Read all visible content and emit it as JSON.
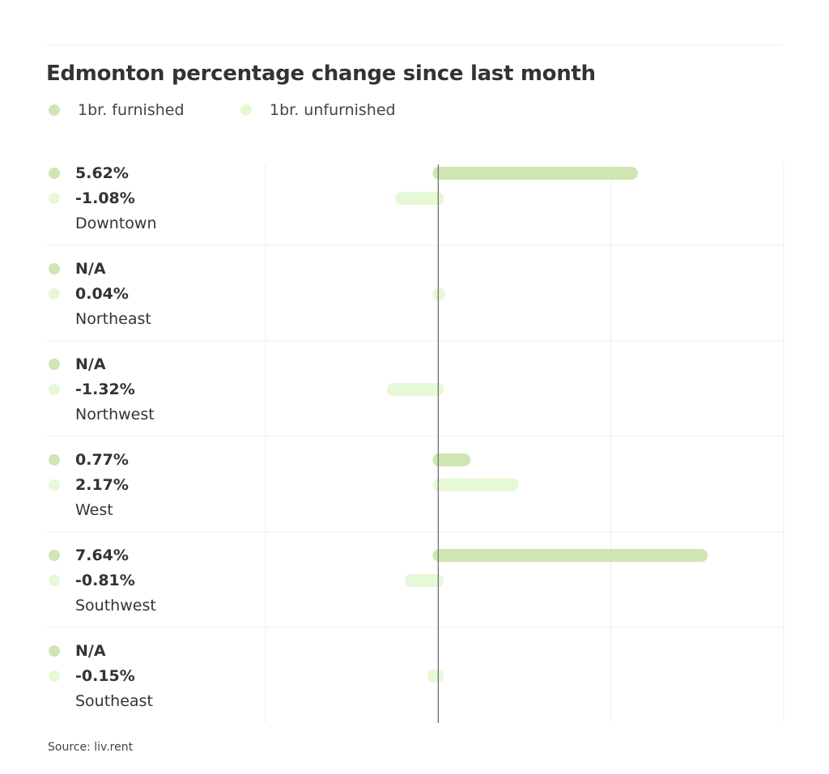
{
  "title": "Edmonton percentage change since last month",
  "source": "Source: liv.rent",
  "colors": {
    "furnished": "#cfe6b3",
    "unfurnished": "#e6f8d6"
  },
  "chart_data": {
    "type": "bar",
    "orientation": "horizontal",
    "title": "Edmonton percentage change since last month",
    "categories": [
      "Downtown",
      "Northeast",
      "Northwest",
      "West",
      "Southwest",
      "Southeast"
    ],
    "series": [
      {
        "name": "1br. furnished",
        "values": [
          5.62,
          null,
          null,
          0.77,
          7.64,
          null
        ],
        "labels": [
          "5.62%",
          "N/A",
          "N/A",
          "0.77%",
          "7.64%",
          "N/A"
        ]
      },
      {
        "name": "1br. unfurnished",
        "values": [
          -1.08,
          0.04,
          -1.32,
          2.17,
          -0.81,
          -0.15
        ],
        "labels": [
          "-1.08%",
          "0.04%",
          "-1.32%",
          "2.17%",
          "-0.81%",
          "-0.15%"
        ]
      }
    ],
    "xlim": [
      -5,
      10
    ],
    "gridlines": [
      -5,
      0,
      5,
      10
    ],
    "legend": "top-left"
  }
}
